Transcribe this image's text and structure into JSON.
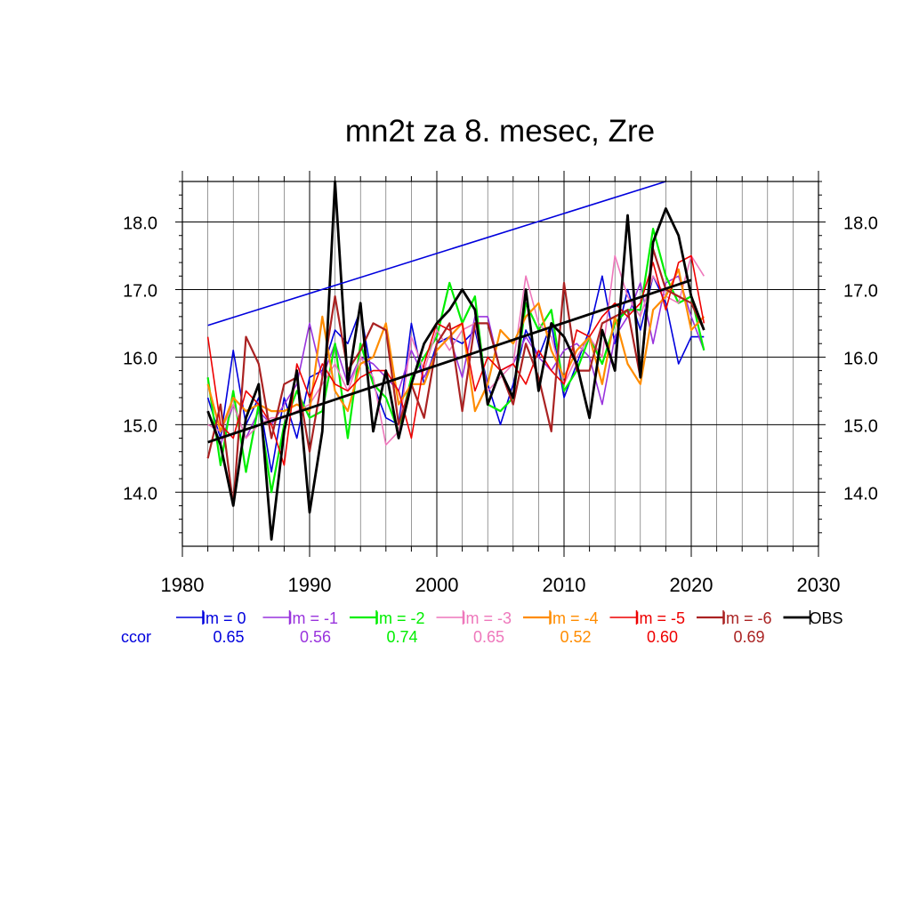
{
  "chart_data": {
    "type": "line",
    "title": "mn2t za 8. mesec, Zre",
    "xlabel": "",
    "ylabel": "",
    "xlim": [
      1980,
      2030
    ],
    "ylim": [
      13.2,
      18.6
    ],
    "x_ticks": [
      1980,
      1990,
      2000,
      2010,
      2020,
      2030
    ],
    "x_tick_labels": [
      "1980",
      "1990",
      "2000",
      "2010",
      "2020",
      "2030"
    ],
    "y_ticks": [
      14.0,
      15.0,
      16.0,
      17.0,
      18.0
    ],
    "y_tick_labels": [
      "14.0",
      "15.0",
      "16.0",
      "17.0",
      "18.0"
    ],
    "grid": true,
    "legend_position": "bottom",
    "x": [
      1982,
      1983,
      1984,
      1985,
      1986,
      1987,
      1988,
      1989,
      1990,
      1991,
      1992,
      1993,
      1994,
      1995,
      1996,
      1997,
      1998,
      1999,
      2000,
      2001,
      2002,
      2003,
      2004,
      2005,
      2006,
      2007,
      2008,
      2009,
      2010,
      2011,
      2012,
      2013,
      2014,
      2015,
      2016,
      2017,
      2018,
      2019,
      2020,
      2021
    ],
    "ccor_label": "ccor",
    "series": [
      {
        "name": "lm = 0",
        "color": "#0000dd",
        "width": 1.6,
        "ccor": "0.65",
        "values": [
          15.4,
          14.8,
          16.1,
          15.0,
          15.4,
          14.3,
          15.4,
          14.8,
          15.7,
          15.8,
          16.4,
          16.2,
          16.7,
          15.6,
          15.1,
          15.0,
          16.5,
          15.6,
          16.2,
          16.3,
          16.2,
          16.4,
          15.6,
          15.0,
          15.6,
          16.4,
          16.0,
          16.5,
          15.4,
          15.9,
          16.4,
          17.2,
          16.2,
          17.0,
          16.4,
          17.2,
          16.8,
          15.9,
          16.3,
          16.3
        ]
      },
      {
        "name": "lm = -1",
        "color": "#9933dd",
        "width": 1.6,
        "ccor": "0.56",
        "values": [
          15.2,
          14.7,
          15.3,
          14.8,
          15.2,
          15.0,
          15.3,
          15.6,
          16.5,
          15.7,
          16.2,
          15.6,
          16.0,
          15.9,
          15.7,
          15.5,
          16.1,
          15.7,
          16.1,
          16.3,
          15.7,
          16.6,
          16.6,
          15.8,
          15.9,
          16.3,
          16.0,
          15.8,
          16.1,
          16.2,
          16.0,
          15.3,
          16.3,
          16.6,
          17.1,
          16.2,
          17.1,
          17.2,
          16.6,
          16.1
        ]
      },
      {
        "name": "lm = -2",
        "color": "#00ee00",
        "width": 2.2,
        "ccor": "0.74",
        "values": [
          15.7,
          14.4,
          15.5,
          14.3,
          15.3,
          14.0,
          15.0,
          15.5,
          15.1,
          15.2,
          16.2,
          14.8,
          16.2,
          15.6,
          15.4,
          14.9,
          15.7,
          16.0,
          16.3,
          17.1,
          16.5,
          16.9,
          15.3,
          15.2,
          15.4,
          16.8,
          16.4,
          16.7,
          15.5,
          15.8,
          16.3,
          15.9,
          16.5,
          16.7,
          16.7,
          17.9,
          17.2,
          16.8,
          16.9,
          16.1
        ]
      },
      {
        "name": "lm = -3",
        "color": "#ee77bb",
        "width": 1.6,
        "ccor": "0.65",
        "values": [
          15.0,
          14.9,
          15.3,
          14.8,
          15.0,
          15.1,
          15.1,
          15.2,
          15.3,
          15.6,
          15.9,
          15.5,
          16.0,
          15.7,
          14.7,
          14.9,
          16.3,
          15.8,
          16.4,
          16.1,
          16.4,
          16.5,
          15.5,
          15.7,
          15.9,
          17.2,
          16.5,
          16.3,
          15.6,
          16.0,
          16.3,
          16.0,
          17.5,
          16.9,
          16.6,
          17.2,
          16.9,
          16.8,
          17.5,
          17.2
        ]
      },
      {
        "name": "lm = -4",
        "color": "#ff8c00",
        "width": 2.2,
        "ccor": "0.52",
        "values": [
          15.6,
          14.9,
          15.4,
          15.2,
          15.3,
          15.2,
          15.2,
          15.3,
          15.2,
          16.6,
          15.5,
          15.2,
          15.9,
          16.0,
          16.5,
          15.3,
          15.6,
          15.6,
          16.1,
          16.3,
          16.5,
          15.2,
          15.6,
          16.4,
          16.2,
          16.6,
          16.8,
          16.1,
          15.7,
          16.1,
          16.3,
          15.6,
          16.6,
          15.9,
          15.6,
          16.7,
          16.9,
          17.3,
          16.4,
          16.6
        ]
      },
      {
        "name": "lm = -5",
        "color": "#ee0000",
        "width": 1.6,
        "ccor": "0.60",
        "values": [
          16.3,
          15.0,
          14.8,
          15.5,
          15.3,
          15.0,
          14.4,
          15.9,
          15.4,
          15.9,
          15.6,
          15.5,
          15.7,
          15.8,
          15.8,
          15.5,
          14.8,
          15.9,
          16.5,
          16.4,
          16.5,
          15.5,
          16.0,
          15.8,
          15.9,
          15.6,
          16.1,
          15.8,
          15.6,
          16.4,
          16.3,
          16.6,
          16.8,
          16.6,
          16.8,
          17.4,
          16.7,
          17.4,
          17.5,
          16.5
        ]
      },
      {
        "name": "lm = -6",
        "color": "#aa2222",
        "width": 2.2,
        "ccor": "0.69",
        "values": [
          14.5,
          15.3,
          13.8,
          16.3,
          15.9,
          14.8,
          15.6,
          15.7,
          14.6,
          15.7,
          16.9,
          15.8,
          16.1,
          16.5,
          16.4,
          15.0,
          15.6,
          15.1,
          16.2,
          16.5,
          15.2,
          16.5,
          16.5,
          15.8,
          15.3,
          16.2,
          15.7,
          14.9,
          17.1,
          15.8,
          15.8,
          16.5,
          16.6,
          16.7,
          15.7,
          17.6,
          17.0,
          16.9,
          16.8,
          16.4
        ]
      },
      {
        "name": "OBS",
        "color": "#000000",
        "width": 2.8,
        "ccor": "",
        "values": [
          15.2,
          14.7,
          13.8,
          15.1,
          15.6,
          13.3,
          14.9,
          15.8,
          13.7,
          14.9,
          18.6,
          15.6,
          16.8,
          14.9,
          15.8,
          14.8,
          15.6,
          16.2,
          16.5,
          16.7,
          17.0,
          16.7,
          15.3,
          15.8,
          15.4,
          17.0,
          15.5,
          16.5,
          16.3,
          15.9,
          15.1,
          16.4,
          15.8,
          18.1,
          15.7,
          17.7,
          18.2,
          17.8,
          16.9,
          16.4
        ]
      }
    ],
    "trend_lines": [
      {
        "name": "lm = 0 trend",
        "color": "#0000dd",
        "width": 1.6,
        "x": [
          1982,
          2018
        ],
        "y": [
          16.47,
          18.6
        ]
      },
      {
        "name": "OBS trend",
        "color": "#000000",
        "width": 2.8,
        "x": [
          1982,
          2020
        ],
        "y": [
          14.74,
          17.14
        ]
      }
    ]
  }
}
